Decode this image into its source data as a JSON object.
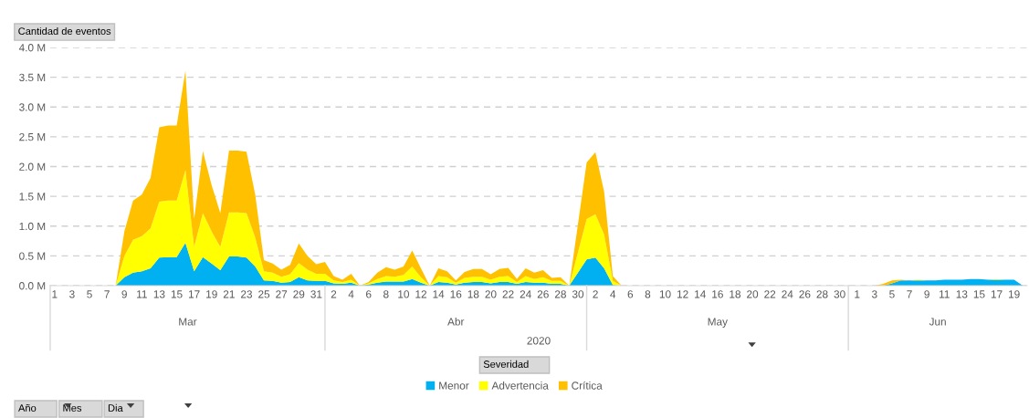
{
  "chart_data": {
    "type": "area",
    "stacked": true,
    "ylabel": "Cantidad de eventos",
    "legend_title": "Severidad",
    "legend": "bottom",
    "grid": "y",
    "categories": [
      "1",
      null,
      "3",
      null,
      "5",
      null,
      "7",
      null,
      "9",
      null,
      "11",
      null,
      "13",
      null,
      "15",
      null,
      "17",
      null,
      "19",
      null,
      "21",
      null,
      "23",
      null,
      "25",
      null,
      "27",
      null,
      "29",
      null,
      "31",
      null,
      "2",
      null,
      "4",
      null,
      "6",
      null,
      "8",
      null,
      "10",
      null,
      "12",
      null,
      "14",
      null,
      "16",
      null,
      "18",
      null,
      "20",
      null,
      "22",
      null,
      "24",
      null,
      "26",
      null,
      "28",
      null,
      "30",
      null,
      "2",
      null,
      "4",
      null,
      "6",
      null,
      "8",
      null,
      "10",
      null,
      "12",
      null,
      "14",
      null,
      "16",
      null,
      "18",
      null,
      "20",
      null,
      "22",
      null,
      "24",
      null,
      "26",
      null,
      "28",
      null,
      "30",
      null,
      "1",
      null,
      "3",
      null,
      "5",
      null,
      "7",
      null,
      "9",
      null,
      "11",
      null,
      "13",
      null,
      "15",
      null,
      "17",
      null,
      "19",
      null
    ],
    "series": [
      {
        "name": "Menor",
        "color": "#00b0f0",
        "values": [
          0,
          0,
          0,
          0,
          0,
          0,
          0,
          0,
          0.14,
          0.22,
          0.24,
          0.29,
          0.47,
          0.48,
          0.48,
          0.72,
          0.24,
          0.48,
          0.37,
          0.26,
          0.49,
          0.49,
          0.47,
          0.32,
          0.09,
          0.08,
          0.05,
          0.06,
          0.14,
          0.09,
          0.08,
          0.08,
          0.04,
          0.03,
          0.05,
          0,
          0.02,
          0.05,
          0.07,
          0.07,
          0.07,
          0.11,
          0.05,
          0,
          0.06,
          0.05,
          0.02,
          0.05,
          0.06,
          0.06,
          0.04,
          0.06,
          0.06,
          0.03,
          0.06,
          0.05,
          0.05,
          0.03,
          0.03,
          0,
          0.22,
          0.44,
          0.47,
          0.29,
          0.01,
          0,
          0,
          0,
          0,
          0,
          0,
          0,
          0,
          0,
          0,
          0,
          0,
          0,
          0,
          0,
          0,
          0,
          0,
          0,
          0,
          0,
          0,
          0,
          0,
          0,
          0,
          0,
          0,
          0,
          0,
          0,
          0.04,
          0.09,
          0.09,
          0.09,
          0.09,
          0.09,
          0.1,
          0.1,
          0.1,
          0.11,
          0.11,
          0.1,
          0.1,
          0.1,
          0.1,
          0
        ]
      },
      {
        "name": "Advertencia",
        "color": "#ffff00",
        "values": [
          0,
          0,
          0,
          0,
          0,
          0,
          0,
          0,
          0.36,
          0.55,
          0.59,
          0.67,
          0.94,
          0.95,
          0.95,
          1.22,
          0.41,
          0.74,
          0.54,
          0.39,
          0.74,
          0.74,
          0.75,
          0.49,
          0.15,
          0.14,
          0.1,
          0.13,
          0.24,
          0.18,
          0.12,
          0.12,
          0.05,
          0.03,
          0.05,
          0,
          0.02,
          0.06,
          0.09,
          0.08,
          0.11,
          0.21,
          0.09,
          0,
          0.1,
          0.09,
          0.03,
          0.08,
          0.09,
          0.09,
          0.06,
          0.09,
          0.1,
          0.03,
          0.1,
          0.06,
          0.09,
          0.05,
          0.05,
          0,
          0.34,
          0.68,
          0.73,
          0.57,
          0.07,
          0,
          0,
          0,
          0,
          0,
          0,
          0,
          0,
          0,
          0,
          0,
          0,
          0,
          0,
          0,
          0,
          0,
          0,
          0,
          0,
          0,
          0,
          0,
          0,
          0,
          0,
          0,
          0,
          0,
          0,
          0,
          0,
          0,
          0,
          0.01,
          0,
          0,
          0,
          0,
          0,
          0,
          0,
          0,
          0.01,
          0,
          0,
          0
        ]
      },
      {
        "name": "Crítica",
        "color": "#ffc000",
        "values": [
          0,
          0,
          0,
          0,
          0,
          0,
          0,
          0,
          0.41,
          0.66,
          0.7,
          0.85,
          1.25,
          1.26,
          1.26,
          1.67,
          0.47,
          1.04,
          0.78,
          0.57,
          1.04,
          1.04,
          1.03,
          0.72,
          0.19,
          0.15,
          0.12,
          0.16,
          0.33,
          0.23,
          0.16,
          0.2,
          0.07,
          0.04,
          0.1,
          0,
          0.02,
          0.11,
          0.15,
          0.12,
          0.14,
          0.27,
          0.15,
          0,
          0.13,
          0.1,
          0.04,
          0.1,
          0.13,
          0.13,
          0.09,
          0.13,
          0.14,
          0.05,
          0.13,
          0.11,
          0.12,
          0.05,
          0.06,
          0,
          0.47,
          0.95,
          1.04,
          0.72,
          0.08,
          0,
          0,
          0,
          0,
          0,
          0,
          0,
          0,
          0,
          0,
          0,
          0,
          0,
          0,
          0,
          0,
          0,
          0,
          0,
          0,
          0,
          0,
          0,
          0,
          0,
          0,
          0,
          0,
          0,
          0,
          0.03,
          0.05,
          0.01,
          0,
          0,
          0,
          0,
          0,
          0,
          0,
          0,
          0,
          0,
          0,
          0,
          0,
          0
        ]
      }
    ],
    "ylim": [
      0,
      4
    ],
    "yticks": [
      {
        "value": 0,
        "label": "0.0 M"
      },
      {
        "value": 0.5,
        "label": "0.5 M"
      },
      {
        "value": 1,
        "label": "1.0 M"
      },
      {
        "value": 1.5,
        "label": "1.5 M"
      },
      {
        "value": 2,
        "label": "2.0 M"
      },
      {
        "value": 2.5,
        "label": "2.5 M"
      },
      {
        "value": 3,
        "label": "3.0 M"
      },
      {
        "value": 3.5,
        "label": "3.5 M"
      },
      {
        "value": 4,
        "label": "4.0 M"
      }
    ],
    "annotations": [
      "Mar",
      "Abr",
      "May",
      "Jun",
      "2020",
      "Año",
      "Mes",
      "Dia"
    ]
  }
}
